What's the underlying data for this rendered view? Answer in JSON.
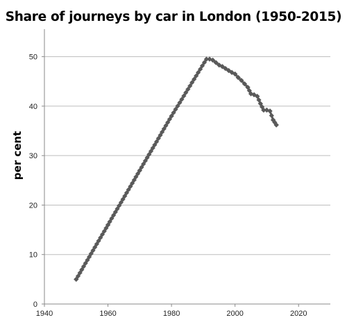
{
  "chart_data": {
    "type": "line",
    "title": "Share of journeys by car in London (1950-2015)",
    "xlabel": "",
    "ylabel": "per cent",
    "xlim": [
      1940,
      2030
    ],
    "ylim": [
      0,
      55
    ],
    "xticks": [
      1940,
      1960,
      1980,
      2000,
      2020
    ],
    "yticks": [
      0,
      10,
      20,
      30,
      40,
      50
    ],
    "grid": "horizontal",
    "legend": "none",
    "series": [
      {
        "color": "#5a5a5a",
        "x": [
          1950,
          1960,
          1970,
          1980,
          1991,
          1992,
          1993,
          1994,
          1995,
          1996,
          1997,
          1998,
          1999,
          2000,
          2001,
          2002,
          2003,
          2004,
          2005,
          2006,
          2007,
          2008,
          2009,
          2010,
          2011,
          2012,
          2013
        ],
        "y": [
          5,
          16,
          27,
          38,
          49.5,
          49.5,
          49.3,
          48.8,
          48.3,
          48,
          47.6,
          47.2,
          46.8,
          46.5,
          45.8,
          45.2,
          44.5,
          43.8,
          42.5,
          42.3,
          42,
          40.5,
          39.2,
          39.2,
          39,
          37.2,
          36.2
        ]
      }
    ]
  }
}
